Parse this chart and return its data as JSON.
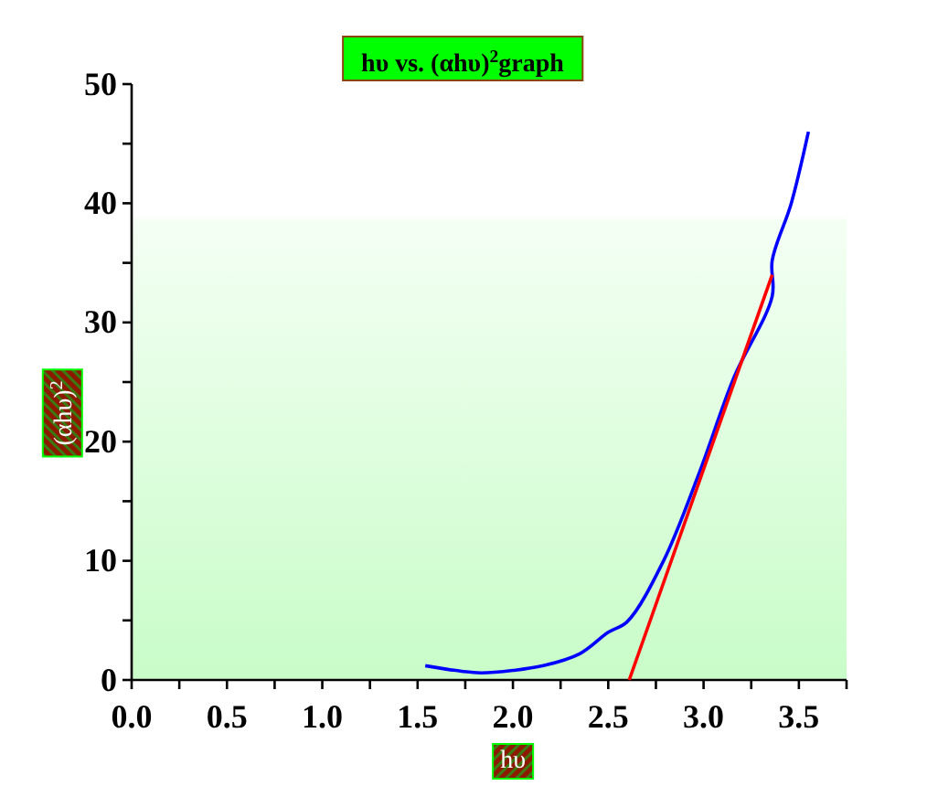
{
  "chart_data": {
    "type": "line",
    "title": "hυ vs. (αhυ)$^{2}$graph",
    "xlabel": "hυ",
    "ylabel": "(αhυ)$^{2}$",
    "series": [
      {
        "color": "#0000ff",
        "x": [
          1.54,
          1.7,
          1.83,
          2.0,
          2.16,
          2.35,
          2.5,
          2.6,
          2.79,
          2.98,
          3.16,
          3.36,
          3.36,
          3.46,
          3.55
        ],
        "values": [
          1.2,
          0.8,
          0.6,
          0.8,
          1.2,
          2.2,
          4,
          4.9,
          10,
          17.5,
          25.4,
          32.2,
          35.2,
          40,
          46
        ]
      },
      {
        "color": "#ff0000",
        "x": [
          2.61,
          3.36
        ],
        "values": [
          0,
          34
        ]
      }
    ],
    "xlim": [
      0,
      3.75
    ],
    "ylim": [
      0,
      50
    ],
    "xticks": [
      {
        "value": 0,
        "label": "0.0"
      },
      {
        "value": 0.25,
        "label": null
      },
      {
        "value": 0.5,
        "label": "0.5"
      },
      {
        "value": 0.75,
        "label": null
      },
      {
        "value": 1,
        "label": "1.0"
      },
      {
        "value": 1.25,
        "label": null
      },
      {
        "value": 1.5,
        "label": "1.5"
      },
      {
        "value": 1.75,
        "label": null
      },
      {
        "value": 2,
        "label": "2.0"
      },
      {
        "value": 2.25,
        "label": null
      },
      {
        "value": 2.5,
        "label": "2.5"
      },
      {
        "value": 2.75,
        "label": null
      },
      {
        "value": 3,
        "label": "3.0"
      },
      {
        "value": 3.25,
        "label": null
      },
      {
        "value": 3.5,
        "label": "3.5"
      },
      {
        "value": 3.75,
        "label": null
      }
    ],
    "yticks": [
      0,
      {
        "value": 5,
        "label": null
      },
      10,
      {
        "value": 15,
        "label": null
      },
      20,
      {
        "value": 25,
        "label": null
      },
      30,
      {
        "value": 35,
        "label": null
      },
      40,
      {
        "value": 45,
        "label": null
      },
      50
    ],
    "marker": "none",
    "line_style": "solid"
  }
}
